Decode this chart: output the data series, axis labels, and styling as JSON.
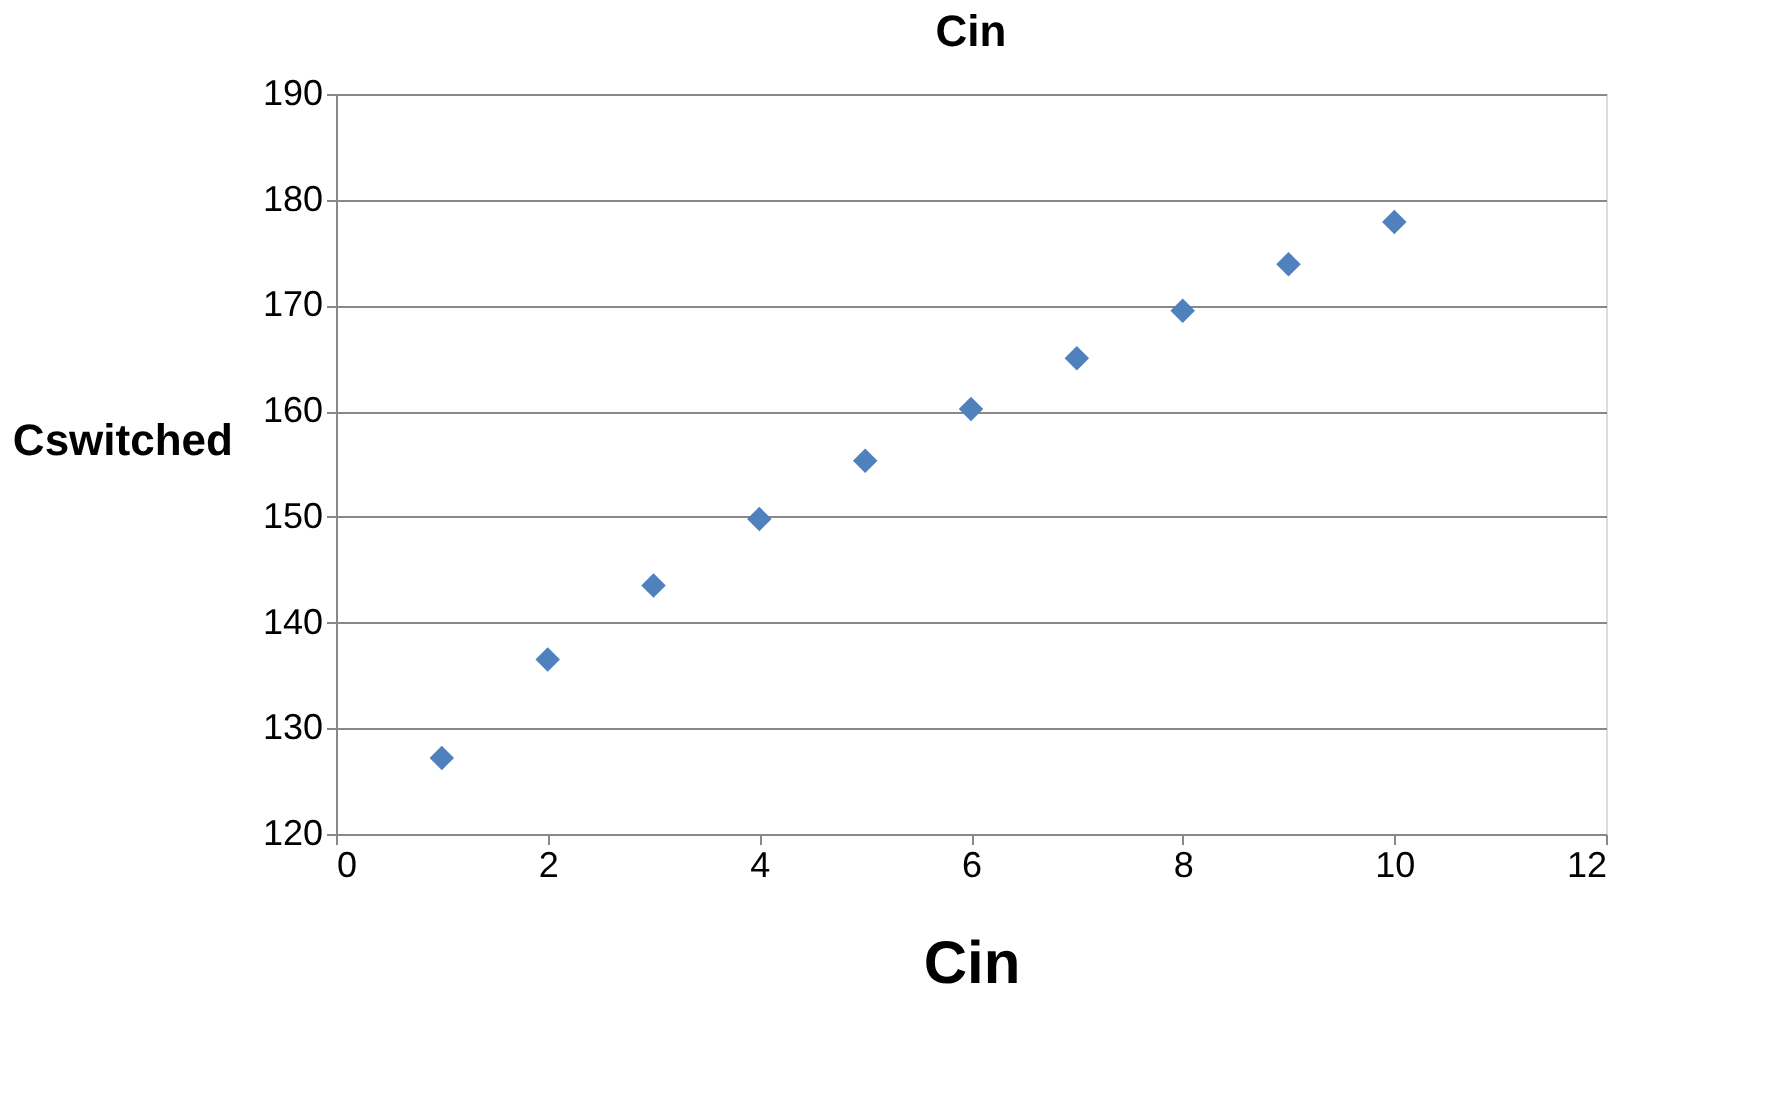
{
  "chart_data": {
    "type": "scatter",
    "title": "Cin",
    "xlabel": "Cin",
    "ylabel": "Cswitched",
    "x": [
      1,
      2,
      3,
      4,
      5,
      6,
      7,
      8,
      9,
      10
    ],
    "series": [
      {
        "color": "#4f81bd",
        "values": [
          127.2,
          136.5,
          143.5,
          149.8,
          155.3,
          160.2,
          165.0,
          169.5,
          173.9,
          177.9
        ]
      }
    ],
    "xlim": [
      0,
      12
    ],
    "xticks": [
      0,
      2,
      4,
      6,
      8,
      10,
      12
    ],
    "ylim": [
      120,
      190
    ],
    "yticks": [
      120,
      130,
      140,
      150,
      160,
      170,
      180,
      190
    ],
    "grid": "y",
    "marker": "diamond",
    "legend": false
  }
}
